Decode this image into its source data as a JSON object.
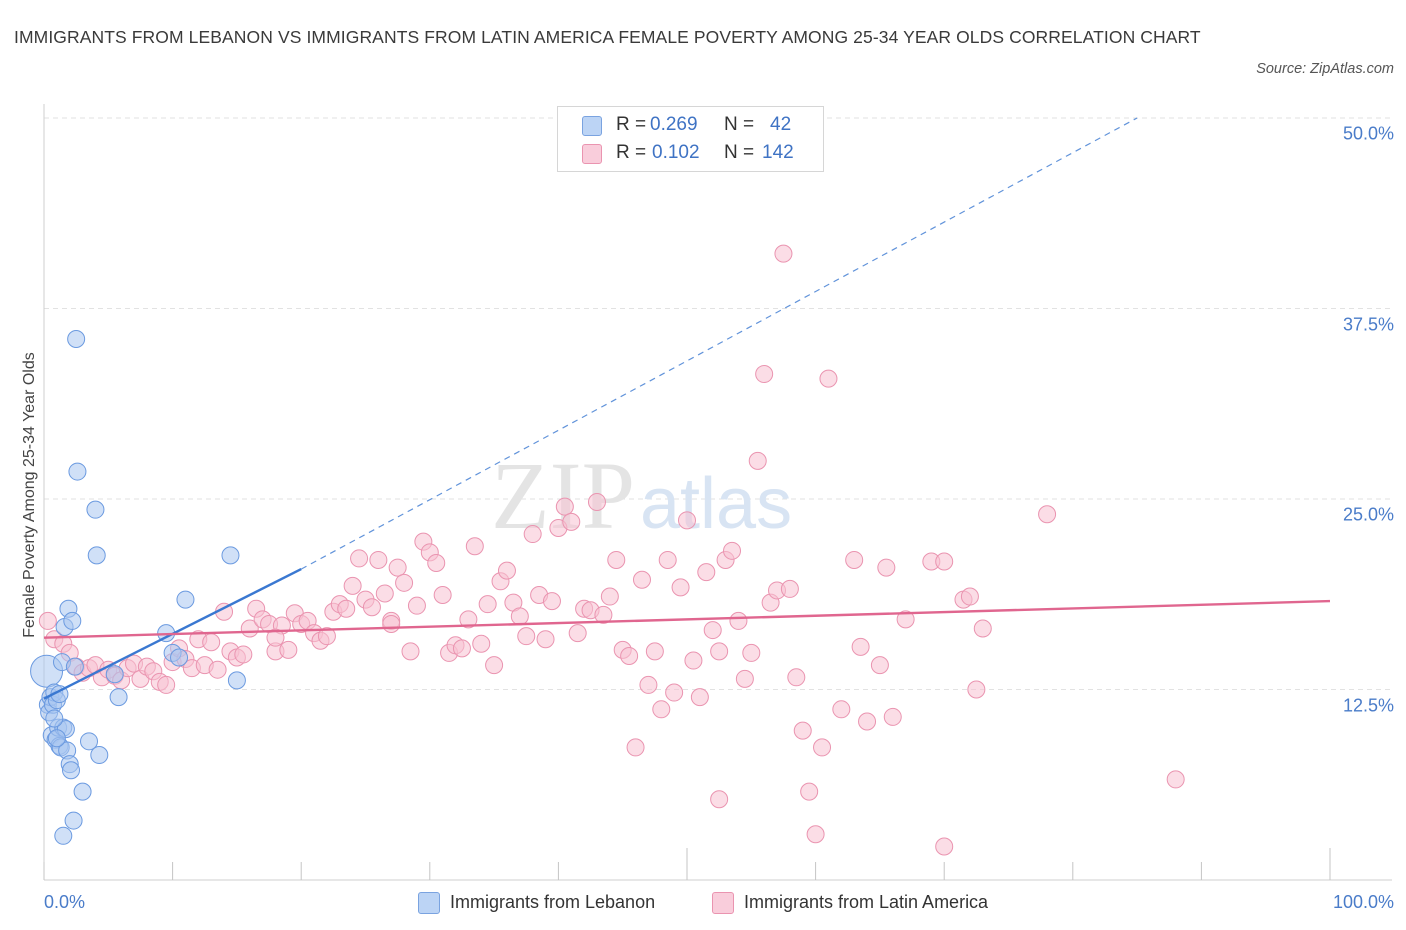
{
  "title": "IMMIGRANTS FROM LEBANON VS IMMIGRANTS FROM LATIN AMERICA FEMALE POVERTY AMONG 25-34 YEAR OLDS CORRELATION CHART",
  "source": "Source: ZipAtlas.com",
  "watermark": {
    "zip": "ZIP",
    "atlas": "atlas"
  },
  "legend": {
    "rows": [
      {
        "r_label": "R =",
        "r_value": "0.269",
        "n_label": "N =",
        "n_value": "42",
        "color": "#a9c7f0",
        "border": "#7aa3e0"
      },
      {
        "r_label": "R =",
        "r_value": "0.102",
        "n_label": "N =",
        "n_value": "142",
        "color": "#f7c1d2",
        "border": "#ea94b0"
      }
    ]
  },
  "chart_data": {
    "type": "scatter",
    "title": "IMMIGRANTS FROM LEBANON VS IMMIGRANTS FROM LATIN AMERICA FEMALE POVERTY AMONG 25-34 YEAR OLDS CORRELATION CHART",
    "xlabel": "",
    "ylabel": "Female Poverty Among 25-34 Year Olds",
    "xlim": [
      0,
      100
    ],
    "ylim": [
      0,
      50
    ],
    "x_tick_labels": [
      "0.0%",
      "100.0%"
    ],
    "y_ticks": [
      12.5,
      25.0,
      37.5,
      50.0
    ],
    "y_tick_labels": [
      "12.5%",
      "25.0%",
      "37.5%",
      "50.0%"
    ],
    "grid": true,
    "legend_position": "top-center",
    "series": [
      {
        "name": "Immigrants from Lebanon",
        "color": "#a9c7f0",
        "stroke": "#6b9ae0",
        "trend": {
          "x": [
            0,
            20
          ],
          "y": [
            11.9,
            20.4
          ],
          "color": "#3a78d1",
          "dashed_to": [
            85,
            50.0
          ]
        },
        "points": [
          [
            0.2,
            13.7
          ],
          [
            0.3,
            11.5
          ],
          [
            0.4,
            11.0
          ],
          [
            0.5,
            12.0
          ],
          [
            0.6,
            9.5
          ],
          [
            0.7,
            11.5
          ],
          [
            0.8,
            12.3
          ],
          [
            0.9,
            9.2
          ],
          [
            1.0,
            11.8
          ],
          [
            1.1,
            10.0
          ],
          [
            1.2,
            8.8
          ],
          [
            1.3,
            8.7
          ],
          [
            1.4,
            14.3
          ],
          [
            1.5,
            10.0
          ],
          [
            1.6,
            16.6
          ],
          [
            1.7,
            9.9
          ],
          [
            1.8,
            8.5
          ],
          [
            1.9,
            17.8
          ],
          [
            2.0,
            7.6
          ],
          [
            2.1,
            7.2
          ],
          [
            2.2,
            17.0
          ],
          [
            2.3,
            3.9
          ],
          [
            2.4,
            14.0
          ],
          [
            2.5,
            35.5
          ],
          [
            2.6,
            26.8
          ],
          [
            3.0,
            5.8
          ],
          [
            3.5,
            9.1
          ],
          [
            4.0,
            24.3
          ],
          [
            4.1,
            21.3
          ],
          [
            4.3,
            8.2
          ],
          [
            5.5,
            13.5
          ],
          [
            5.8,
            12.0
          ],
          [
            1.5,
            2.9
          ],
          [
            9.5,
            16.2
          ],
          [
            10.0,
            14.9
          ],
          [
            10.5,
            14.6
          ],
          [
            11.0,
            18.4
          ],
          [
            14.5,
            21.3
          ],
          [
            15.0,
            13.1
          ],
          [
            1.0,
            9.3
          ],
          [
            0.8,
            10.6
          ],
          [
            1.2,
            12.2
          ]
        ]
      },
      {
        "name": "Immigrants from Latin America",
        "color": "#f7c1d2",
        "stroke": "#ea94b0",
        "trend": {
          "x": [
            0,
            100
          ],
          "y": [
            15.9,
            18.3
          ],
          "color": "#e0668f"
        },
        "points": [
          [
            0.3,
            17.0
          ],
          [
            0.8,
            15.8
          ],
          [
            1.5,
            15.5
          ],
          [
            2.0,
            14.9
          ],
          [
            2.5,
            14.0
          ],
          [
            3.0,
            13.6
          ],
          [
            3.5,
            13.9
          ],
          [
            4.0,
            14.1
          ],
          [
            4.5,
            13.3
          ],
          [
            5.0,
            13.8
          ],
          [
            5.5,
            13.4
          ],
          [
            6.0,
            13.1
          ],
          [
            6.5,
            13.9
          ],
          [
            7.0,
            14.2
          ],
          [
            7.5,
            13.2
          ],
          [
            8.0,
            14.0
          ],
          [
            8.5,
            13.7
          ],
          [
            9.0,
            13.0
          ],
          [
            9.5,
            12.8
          ],
          [
            10.0,
            14.3
          ],
          [
            10.5,
            15.2
          ],
          [
            11.0,
            14.5
          ],
          [
            11.5,
            13.9
          ],
          [
            12.0,
            15.8
          ],
          [
            12.5,
            14.1
          ],
          [
            13.0,
            15.6
          ],
          [
            13.5,
            13.8
          ],
          [
            14.0,
            17.6
          ],
          [
            14.5,
            15.0
          ],
          [
            15.0,
            14.6
          ],
          [
            15.5,
            14.8
          ],
          [
            16.0,
            16.5
          ],
          [
            16.5,
            17.8
          ],
          [
            17.0,
            17.1
          ],
          [
            17.5,
            16.8
          ],
          [
            18.0,
            15.0
          ],
          [
            18.5,
            16.7
          ],
          [
            19.0,
            15.1
          ],
          [
            19.5,
            17.5
          ],
          [
            20.0,
            16.8
          ],
          [
            20.5,
            17.0
          ],
          [
            21.0,
            16.2
          ],
          [
            21.5,
            15.7
          ],
          [
            22.0,
            16.0
          ],
          [
            22.5,
            17.6
          ],
          [
            23.0,
            18.1
          ],
          [
            23.5,
            17.8
          ],
          [
            24.0,
            19.3
          ],
          [
            24.5,
            21.1
          ],
          [
            25.0,
            18.4
          ],
          [
            25.5,
            17.9
          ],
          [
            26.0,
            21.0
          ],
          [
            26.5,
            18.8
          ],
          [
            27.0,
            17.0
          ],
          [
            27.5,
            20.5
          ],
          [
            28.0,
            19.5
          ],
          [
            28.5,
            15.0
          ],
          [
            29.0,
            18.0
          ],
          [
            29.5,
            22.2
          ],
          [
            30.0,
            21.5
          ],
          [
            30.5,
            20.8
          ],
          [
            31.0,
            18.7
          ],
          [
            31.5,
            14.9
          ],
          [
            32.0,
            15.4
          ],
          [
            32.5,
            15.2
          ],
          [
            33.0,
            17.1
          ],
          [
            33.5,
            21.9
          ],
          [
            34.0,
            15.5
          ],
          [
            34.5,
            18.1
          ],
          [
            35.0,
            14.1
          ],
          [
            35.5,
            19.6
          ],
          [
            36.0,
            20.3
          ],
          [
            36.5,
            18.2
          ],
          [
            37.0,
            17.3
          ],
          [
            37.5,
            16.0
          ],
          [
            38.0,
            22.7
          ],
          [
            38.5,
            18.7
          ],
          [
            39.0,
            15.8
          ],
          [
            39.5,
            18.3
          ],
          [
            40.0,
            23.1
          ],
          [
            40.5,
            24.5
          ],
          [
            41.0,
            23.5
          ],
          [
            41.5,
            16.2
          ],
          [
            42.0,
            17.8
          ],
          [
            42.5,
            17.7
          ],
          [
            43.0,
            24.8
          ],
          [
            43.5,
            17.4
          ],
          [
            44.0,
            18.6
          ],
          [
            44.5,
            21.0
          ],
          [
            45.0,
            15.1
          ],
          [
            45.5,
            14.7
          ],
          [
            46.0,
            8.7
          ],
          [
            46.5,
            19.7
          ],
          [
            47.0,
            12.8
          ],
          [
            47.5,
            15.0
          ],
          [
            48.0,
            11.2
          ],
          [
            48.5,
            21.0
          ],
          [
            49.0,
            12.3
          ],
          [
            49.5,
            19.2
          ],
          [
            50.0,
            23.6
          ],
          [
            50.5,
            14.4
          ],
          [
            51.0,
            12.0
          ],
          [
            51.5,
            20.2
          ],
          [
            52.0,
            16.4
          ],
          [
            52.5,
            15.0
          ],
          [
            53.0,
            21.0
          ],
          [
            53.5,
            21.6
          ],
          [
            54.0,
            17.0
          ],
          [
            54.5,
            13.2
          ],
          [
            55.0,
            14.9
          ],
          [
            55.5,
            27.5
          ],
          [
            56.0,
            33.2
          ],
          [
            56.5,
            18.2
          ],
          [
            57.0,
            19.0
          ],
          [
            57.5,
            41.1
          ],
          [
            58.0,
            19.1
          ],
          [
            58.5,
            13.3
          ],
          [
            59.0,
            9.8
          ],
          [
            59.5,
            5.8
          ],
          [
            60.0,
            3.0
          ],
          [
            60.5,
            8.7
          ],
          [
            61.0,
            32.9
          ],
          [
            62.0,
            11.2
          ],
          [
            63.0,
            21.0
          ],
          [
            63.5,
            15.3
          ],
          [
            64.0,
            10.4
          ],
          [
            65.0,
            14.1
          ],
          [
            65.5,
            20.5
          ],
          [
            66.0,
            10.7
          ],
          [
            67.0,
            17.1
          ],
          [
            69.0,
            20.9
          ],
          [
            70.0,
            20.9
          ],
          [
            71.5,
            18.4
          ],
          [
            72.0,
            18.6
          ],
          [
            72.5,
            12.5
          ],
          [
            73.0,
            16.5
          ],
          [
            78.0,
            24.0
          ],
          [
            88.0,
            6.6
          ],
          [
            52.5,
            5.3
          ],
          [
            70.0,
            2.2
          ],
          [
            18.0,
            15.9
          ],
          [
            27.0,
            16.8
          ]
        ]
      }
    ]
  }
}
